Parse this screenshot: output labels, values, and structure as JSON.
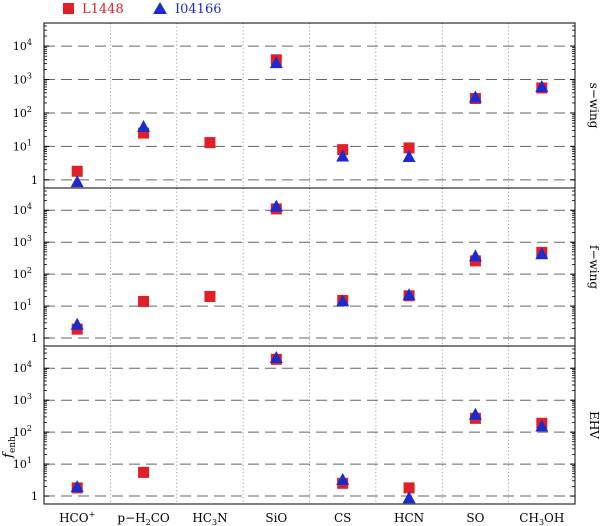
{
  "chart_data": {
    "type": "scatter",
    "categories": [
      "HCO+",
      "p-H2CO",
      "HC3N",
      "SiO",
      "CS",
      "HCN",
      "SO",
      "CH3OH"
    ],
    "category_labels": [
      {
        "base": "HCO",
        "sup": "+",
        "sub": "",
        "tail": ""
      },
      {
        "base": "p−H",
        "sub": "2",
        "tail": "CO",
        "sup": ""
      },
      {
        "base": "HC",
        "sub": "3",
        "tail": "N",
        "sup": ""
      },
      {
        "base": "SiO",
        "sub": "",
        "tail": "",
        "sup": ""
      },
      {
        "base": "CS",
        "sub": "",
        "tail": "",
        "sup": ""
      },
      {
        "base": "HCN",
        "sub": "",
        "tail": "",
        "sup": ""
      },
      {
        "base": "SO",
        "sub": "",
        "tail": "",
        "sup": ""
      },
      {
        "base": "CH",
        "sub": "3",
        "tail": "OH",
        "sup": ""
      }
    ],
    "yscale": "log",
    "ylim": [
      0.7,
      40000
    ],
    "yticks": [
      1,
      10,
      100,
      1000,
      10000
    ],
    "ylabel": {
      "base": "f",
      "sub": "enh"
    },
    "legend": {
      "placement": "top-left",
      "entries": [
        {
          "name": "L1448",
          "marker": "square",
          "color": "#e21f26"
        },
        {
          "name": "I04166",
          "marker": "triangle",
          "color": "#1c2bd0"
        }
      ]
    },
    "panels": [
      {
        "label": "s−wing",
        "series": [
          {
            "name": "L1448",
            "values": [
              1.8,
              25,
              13,
              3900,
              8,
              9,
              270,
              560
            ]
          },
          {
            "name": "I04166",
            "values": [
              0.85,
              38,
              null,
              3100,
              5,
              4.8,
              290,
              600
            ]
          }
        ]
      },
      {
        "label": "f−wing",
        "series": [
          {
            "name": "L1448",
            "values": [
              1.9,
              14,
              20,
              11000,
              15,
              21,
              260,
              480
            ]
          },
          {
            "name": "I04166",
            "values": [
              2.6,
              null,
              null,
              13000,
              14,
              22,
              360,
              420
            ]
          }
        ]
      },
      {
        "label": "EHV",
        "series": [
          {
            "name": "L1448",
            "values": [
              1.8,
              5.5,
              null,
              19000,
              2.5,
              1.8,
              270,
              190
            ]
          },
          {
            "name": "I04166",
            "values": [
              1.9,
              null,
              null,
              21000,
              3.2,
              0.85,
              350,
              150
            ]
          }
        ]
      }
    ],
    "grid": {
      "horizontal": "dashed at decades",
      "vertical": "dotted between categories"
    }
  }
}
